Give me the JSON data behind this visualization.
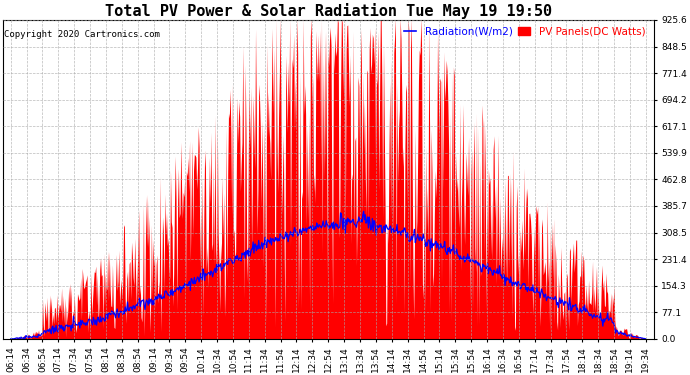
{
  "title": "Total PV Power & Solar Radiation Tue May 19 19:50",
  "copyright": "Copyright 2020 Cartronics.com",
  "legend_radiation": "Radiation(W/m2)",
  "legend_pv": "PV Panels(DC Watts)",
  "legend_radiation_color": "blue",
  "legend_pv_color": "red",
  "ylabel_right_values": [
    0.0,
    77.1,
    154.3,
    231.4,
    308.5,
    385.7,
    462.8,
    539.9,
    617.1,
    694.2,
    771.4,
    848.5,
    925.6
  ],
  "ymax": 925.6,
  "ymin": 0.0,
  "background_color": "#ffffff",
  "grid_color": "#aaaaaa",
  "fill_color": "red",
  "line_color": "blue",
  "title_fontsize": 11,
  "tick_fontsize": 6.5,
  "copyright_fontsize": 6.5
}
